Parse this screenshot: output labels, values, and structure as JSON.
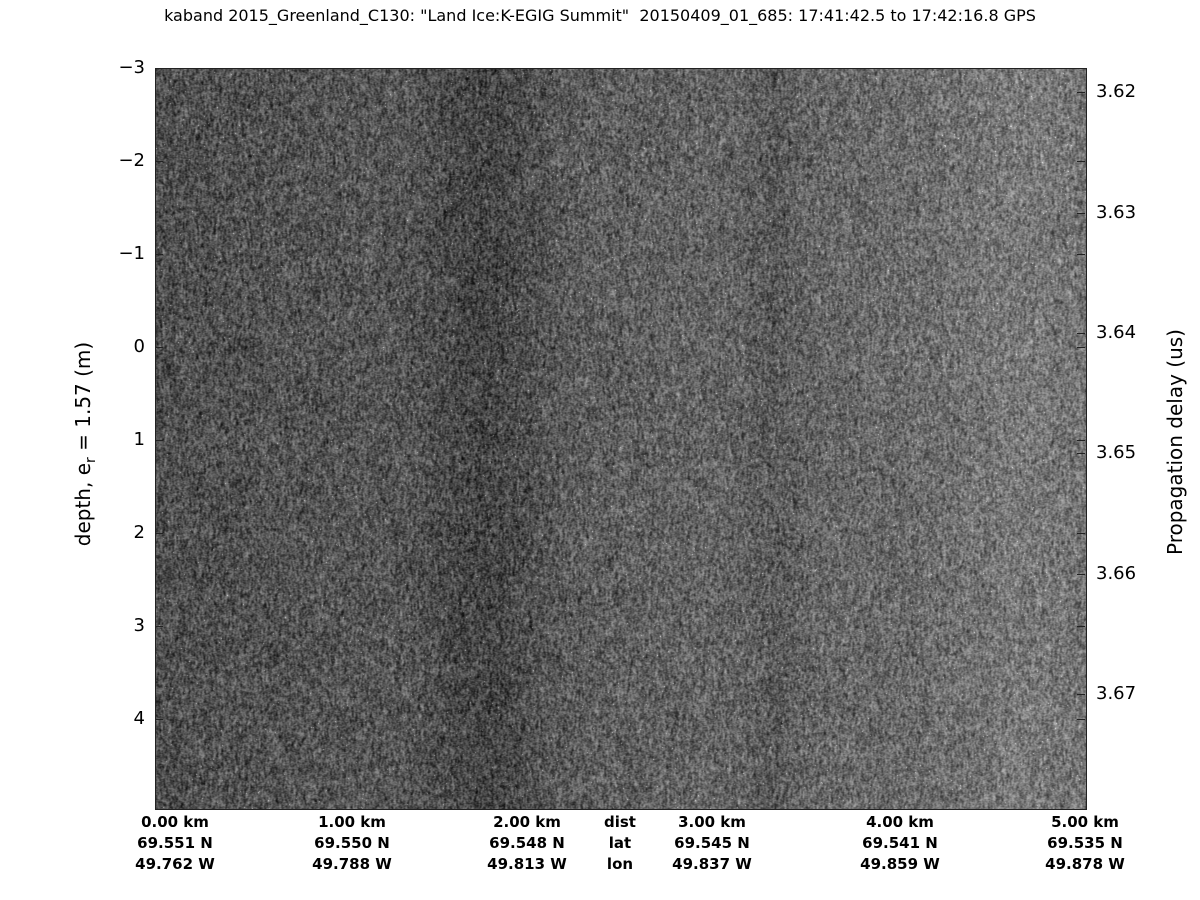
{
  "chart_data": {
    "type": "heatmap",
    "title": "kaband 2015_Greenland_C130: \"Land Ice:K-EGIG Summit\"  20150409_01_685: 17:41:42.5 to 17:42:16.8 GPS",
    "ylabel_left": "depth, e",
    "ylabel_left_sub": "r",
    "ylabel_left_suffix": " = 1.57 (m)",
    "ylabel_right": "Propagation delay (us)",
    "colormap": "gray",
    "left_axis": {
      "ticks": [
        -3,
        -2,
        -1,
        0,
        1,
        2,
        3,
        4
      ],
      "tick_labels": [
        "−3",
        "−2",
        "−1",
        "0",
        "1",
        "2",
        "3",
        "4"
      ],
      "range": [
        -3,
        4.98
      ],
      "reversed": true
    },
    "right_axis": {
      "ticks": [
        3.62,
        3.63,
        3.64,
        3.65,
        3.66,
        3.67
      ],
      "tick_labels": [
        "3.62",
        "3.63",
        "3.64",
        "3.65",
        "3.66",
        "3.67"
      ],
      "range": [
        3.618,
        3.6796
      ],
      "reversed": true
    },
    "bottom_axis": {
      "row_labels": [
        "dist",
        "lat",
        "lon"
      ],
      "columns": [
        {
          "dist": "0.00 km",
          "lat": "69.551 N",
          "lon": "49.762 W"
        },
        {
          "dist": "1.00 km",
          "lat": "69.550 N",
          "lon": "49.788 W"
        },
        {
          "dist": "2.00 km",
          "lat": "69.548 N",
          "lon": "49.813 W"
        },
        {
          "dist": "3.00 km",
          "lat": "69.545 N",
          "lon": "49.837 W"
        },
        {
          "dist": "4.00 km",
          "lat": "69.541 N",
          "lon": "49.859 W"
        },
        {
          "dist": "5.00 km",
          "lat": "69.535 N",
          "lon": "49.878 W"
        }
      ],
      "range_km": [
        0,
        5
      ]
    }
  }
}
